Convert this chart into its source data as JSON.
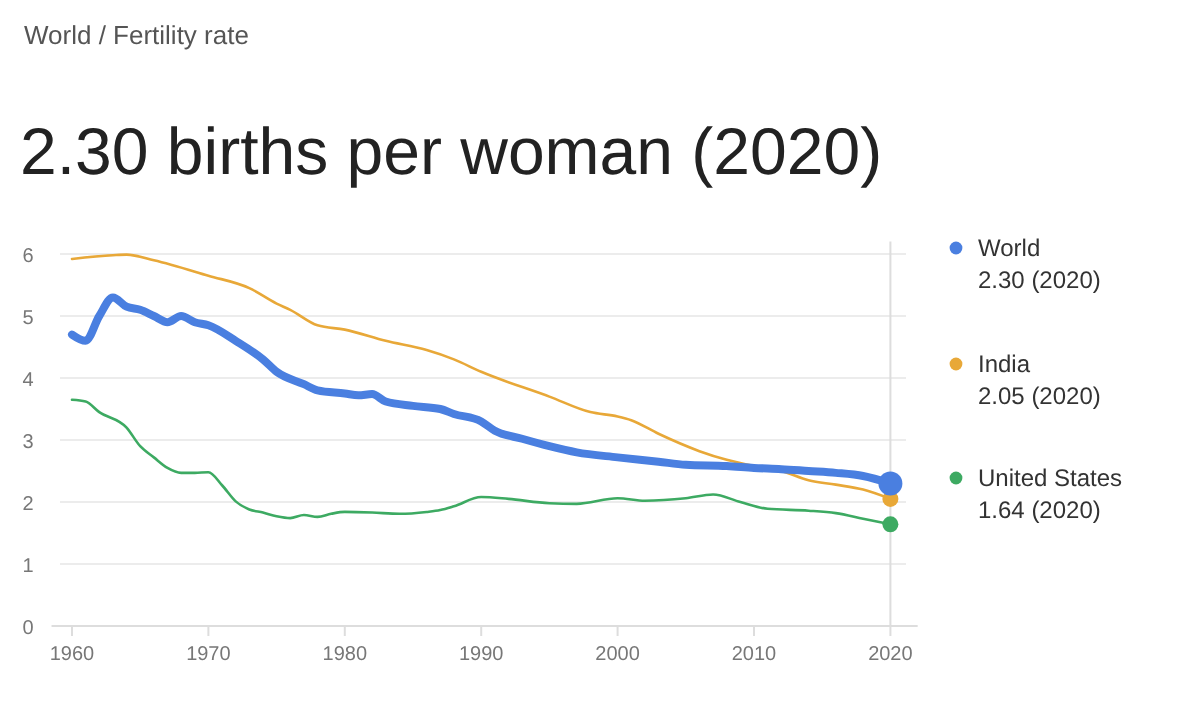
{
  "chart_data": {
    "type": "line",
    "subtitle": "World / Fertility rate",
    "title": "2.30 births per woman (2020)",
    "xlim": [
      1958.5,
      2022
    ],
    "xticks": [
      1960,
      1970,
      1980,
      1990,
      2000,
      2010,
      2020
    ],
    "ylim": [
      0,
      6.2
    ],
    "yticks": [
      0,
      1,
      2,
      3,
      4,
      5,
      6
    ],
    "grid": "y",
    "legend": "right",
    "ref_lines": [
      {
        "axis": "x",
        "value": 2020,
        "color": "#dddddd"
      }
    ],
    "annotations": [
      "2.30 (2020)",
      "2.05 (2020)",
      "1.64 (2020)"
    ],
    "series": [
      {
        "name": "World",
        "color": "#4a7fe0",
        "x": [
          1960,
          1961,
          1962,
          1963,
          1964,
          1965,
          1966,
          1967,
          1968,
          1969,
          1970,
          1972,
          1974,
          1975,
          1977,
          1978,
          1980,
          1981,
          1982,
          1983,
          1985,
          1987,
          1988,
          1990,
          1991,
          1993,
          1995,
          1997,
          2000,
          2003,
          2005,
          2008,
          2010,
          2012,
          2014,
          2016,
          2018,
          2020
        ],
        "values": [
          4.7,
          4.6,
          5.0,
          5.3,
          5.15,
          5.1,
          5.0,
          4.9,
          5.0,
          4.9,
          4.85,
          4.6,
          4.3,
          4.1,
          3.9,
          3.8,
          3.75,
          3.72,
          3.74,
          3.62,
          3.55,
          3.5,
          3.42,
          3.3,
          3.15,
          3.02,
          2.9,
          2.8,
          2.72,
          2.65,
          2.6,
          2.58,
          2.55,
          2.53,
          2.5,
          2.47,
          2.42,
          2.3
        ]
      },
      {
        "name": "India",
        "color": "#e8a838",
        "x": [
          1960,
          1963,
          1964,
          1966,
          1970,
          1973,
          1975,
          1976,
          1978,
          1980,
          1983,
          1986,
          1988,
          1990,
          1995,
          1998,
          2000,
          2001,
          2003,
          2006,
          2008,
          2010,
          2012,
          2014,
          2016,
          2018,
          2020
        ],
        "values": [
          5.92,
          5.98,
          5.99,
          5.9,
          5.65,
          5.45,
          5.2,
          5.1,
          4.85,
          4.78,
          4.6,
          4.45,
          4.3,
          4.1,
          3.7,
          3.45,
          3.38,
          3.32,
          3.1,
          2.82,
          2.68,
          2.58,
          2.5,
          2.35,
          2.28,
          2.2,
          2.05
        ]
      },
      {
        "name": "United States",
        "color": "#3daa62",
        "x": [
          1960,
          1961,
          1962,
          1964,
          1965,
          1966,
          1967,
          1968,
          1969,
          1970,
          1971,
          1972,
          1973,
          1974,
          1975,
          1976,
          1977,
          1978,
          1979,
          1980,
          1982,
          1984,
          1986,
          1987,
          1988,
          1990,
          1992,
          1995,
          1997,
          2000,
          2002,
          2005,
          2007,
          2009,
          2011,
          2014,
          2016,
          2018,
          2020
        ],
        "values": [
          3.65,
          3.62,
          3.45,
          3.2,
          2.9,
          2.72,
          2.55,
          2.47,
          2.47,
          2.48,
          2.27,
          2.01,
          1.88,
          1.83,
          1.77,
          1.74,
          1.79,
          1.76,
          1.81,
          1.84,
          1.83,
          1.81,
          1.84,
          1.87,
          1.93,
          2.08,
          2.05,
          1.98,
          1.97,
          2.06,
          2.02,
          2.06,
          2.12,
          2.0,
          1.89,
          1.86,
          1.82,
          1.73,
          1.64
        ]
      }
    ]
  }
}
